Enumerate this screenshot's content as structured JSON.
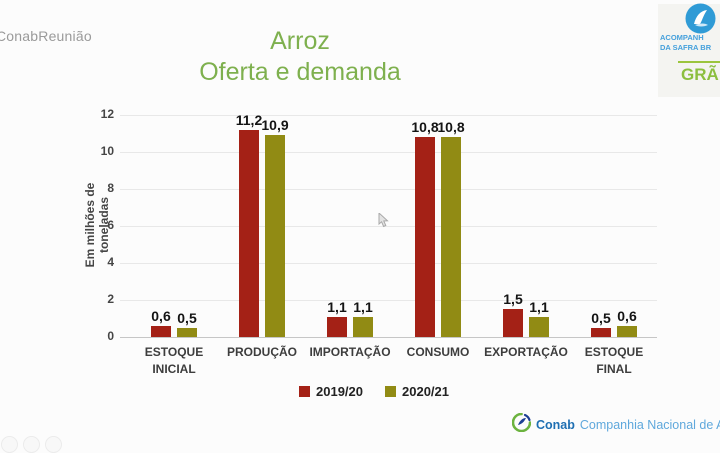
{
  "watermark": "ConabReunião",
  "title": {
    "line1": "Arroz",
    "line2": "Oferta e demanda",
    "color": "#7eb04e"
  },
  "safra_badge": {
    "line1": "ACOMPANH",
    "line2": "DA SAFRA BR",
    "grains": "GRÃ",
    "text_color": "#45a0dc",
    "grains_color": "#8cbf3f",
    "rule_color": "#9bc53d",
    "logo_color": "#2f9bd6"
  },
  "chart_data": {
    "type": "bar",
    "title": "Arroz — Oferta e demanda",
    "xlabel": "",
    "ylabel": "Em milhões de toneladas",
    "ylim": [
      0,
      12
    ],
    "yticks": [
      0,
      2,
      4,
      6,
      8,
      10,
      12
    ],
    "grid": true,
    "legend_position": "bottom",
    "categories": [
      "ESTOQUE\nINICIAL",
      "PRODUÇÃO",
      "IMPORTAÇÃO",
      "CONSUMO",
      "EXPORTAÇÃO",
      "ESTOQUE\nFINAL"
    ],
    "series": [
      {
        "name": "2019/20",
        "color": "#a42116",
        "values": [
          0.6,
          11.2,
          1.1,
          10.8,
          1.5,
          0.5
        ],
        "labels": [
          "0,6",
          "11,2",
          "1,1",
          "10,8",
          "1,5",
          "0,5"
        ]
      },
      {
        "name": "2020/21",
        "color": "#918b14",
        "values": [
          0.5,
          10.9,
          1.1,
          10.8,
          1.1,
          0.6
        ],
        "labels": [
          "0,5",
          "10,9",
          "1,1",
          "10,8",
          "1,1",
          "0,6"
        ]
      }
    ]
  },
  "footer": {
    "brand": "Conab",
    "name": "Companhia Nacional de Abaste",
    "brand_color": "#1f6fb2",
    "name_color": "#5fa8dc"
  }
}
